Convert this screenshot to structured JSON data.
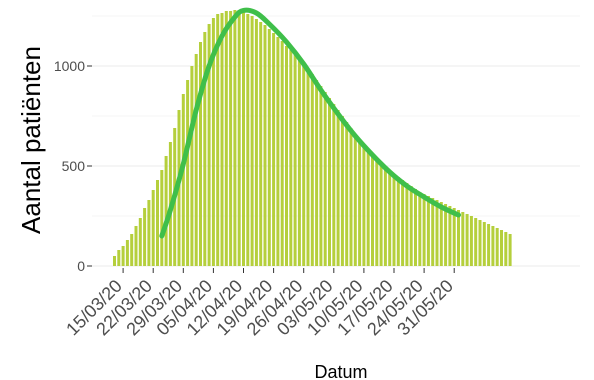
{
  "chart_data": {
    "type": "bar",
    "xlabel": "Datum",
    "ylabel": "Aantal patiënten",
    "ylim": [
      0,
      1300
    ],
    "y_ticks": [
      "0",
      "500",
      "1000"
    ],
    "x_ticks": [
      "15/03/20",
      "22/03/20",
      "29/03/20",
      "05/04/20",
      "12/04/20",
      "19/04/20",
      "26/04/20",
      "03/05/20",
      "10/05/20",
      "17/05/20",
      "24/05/20",
      "31/05/20"
    ],
    "start_date": "13/03/20",
    "grid": true,
    "colors": {
      "bar": "#b5cf3c",
      "line": "#3fbf4a",
      "grid": "#ebebeb",
      "tick": "#333333"
    },
    "series": [
      {
        "kind": "bar",
        "values": [
          50,
          80,
          100,
          130,
          160,
          200,
          240,
          290,
          330,
          380,
          430,
          480,
          550,
          620,
          690,
          780,
          860,
          930,
          1000,
          1060,
          1120,
          1170,
          1210,
          1240,
          1260,
          1265,
          1275,
          1275,
          1280,
          1280,
          1270,
          1260,
          1250,
          1235,
          1220,
          1205,
          1185,
          1165,
          1145,
          1125,
          1100,
          1080,
          1060,
          1040,
          1010,
          980,
          960,
          930,
          900,
          870,
          840,
          810,
          780,
          750,
          720,
          690,
          660,
          630,
          600,
          570,
          550,
          530,
          510,
          490,
          475,
          460,
          445,
          430,
          415,
          400,
          385,
          370,
          360,
          350,
          340,
          330,
          320,
          310,
          300,
          290,
          280,
          270,
          260,
          250,
          240,
          230,
          220,
          210,
          200,
          190,
          180,
          170,
          160
        ]
      },
      {
        "kind": "line",
        "x": [
          "24/03/20",
          "26/03/20",
          "29/03/20",
          "01/04/20",
          "04/04/20",
          "07/04/20",
          "10/04/20",
          "12/04/20",
          "15/04/20",
          "18/04/20",
          "22/04/20",
          "26/04/20",
          "30/04/20",
          "04/05/20",
          "08/05/20",
          "12/05/20",
          "16/05/20",
          "20/05/20",
          "24/05/20",
          "28/05/20",
          "01/06/20"
        ],
        "y": [
          150,
          280,
          510,
          780,
          1000,
          1150,
          1245,
          1278,
          1265,
          1210,
          1120,
          1010,
          880,
          760,
          650,
          555,
          470,
          400,
          345,
          295,
          255
        ]
      }
    ]
  }
}
